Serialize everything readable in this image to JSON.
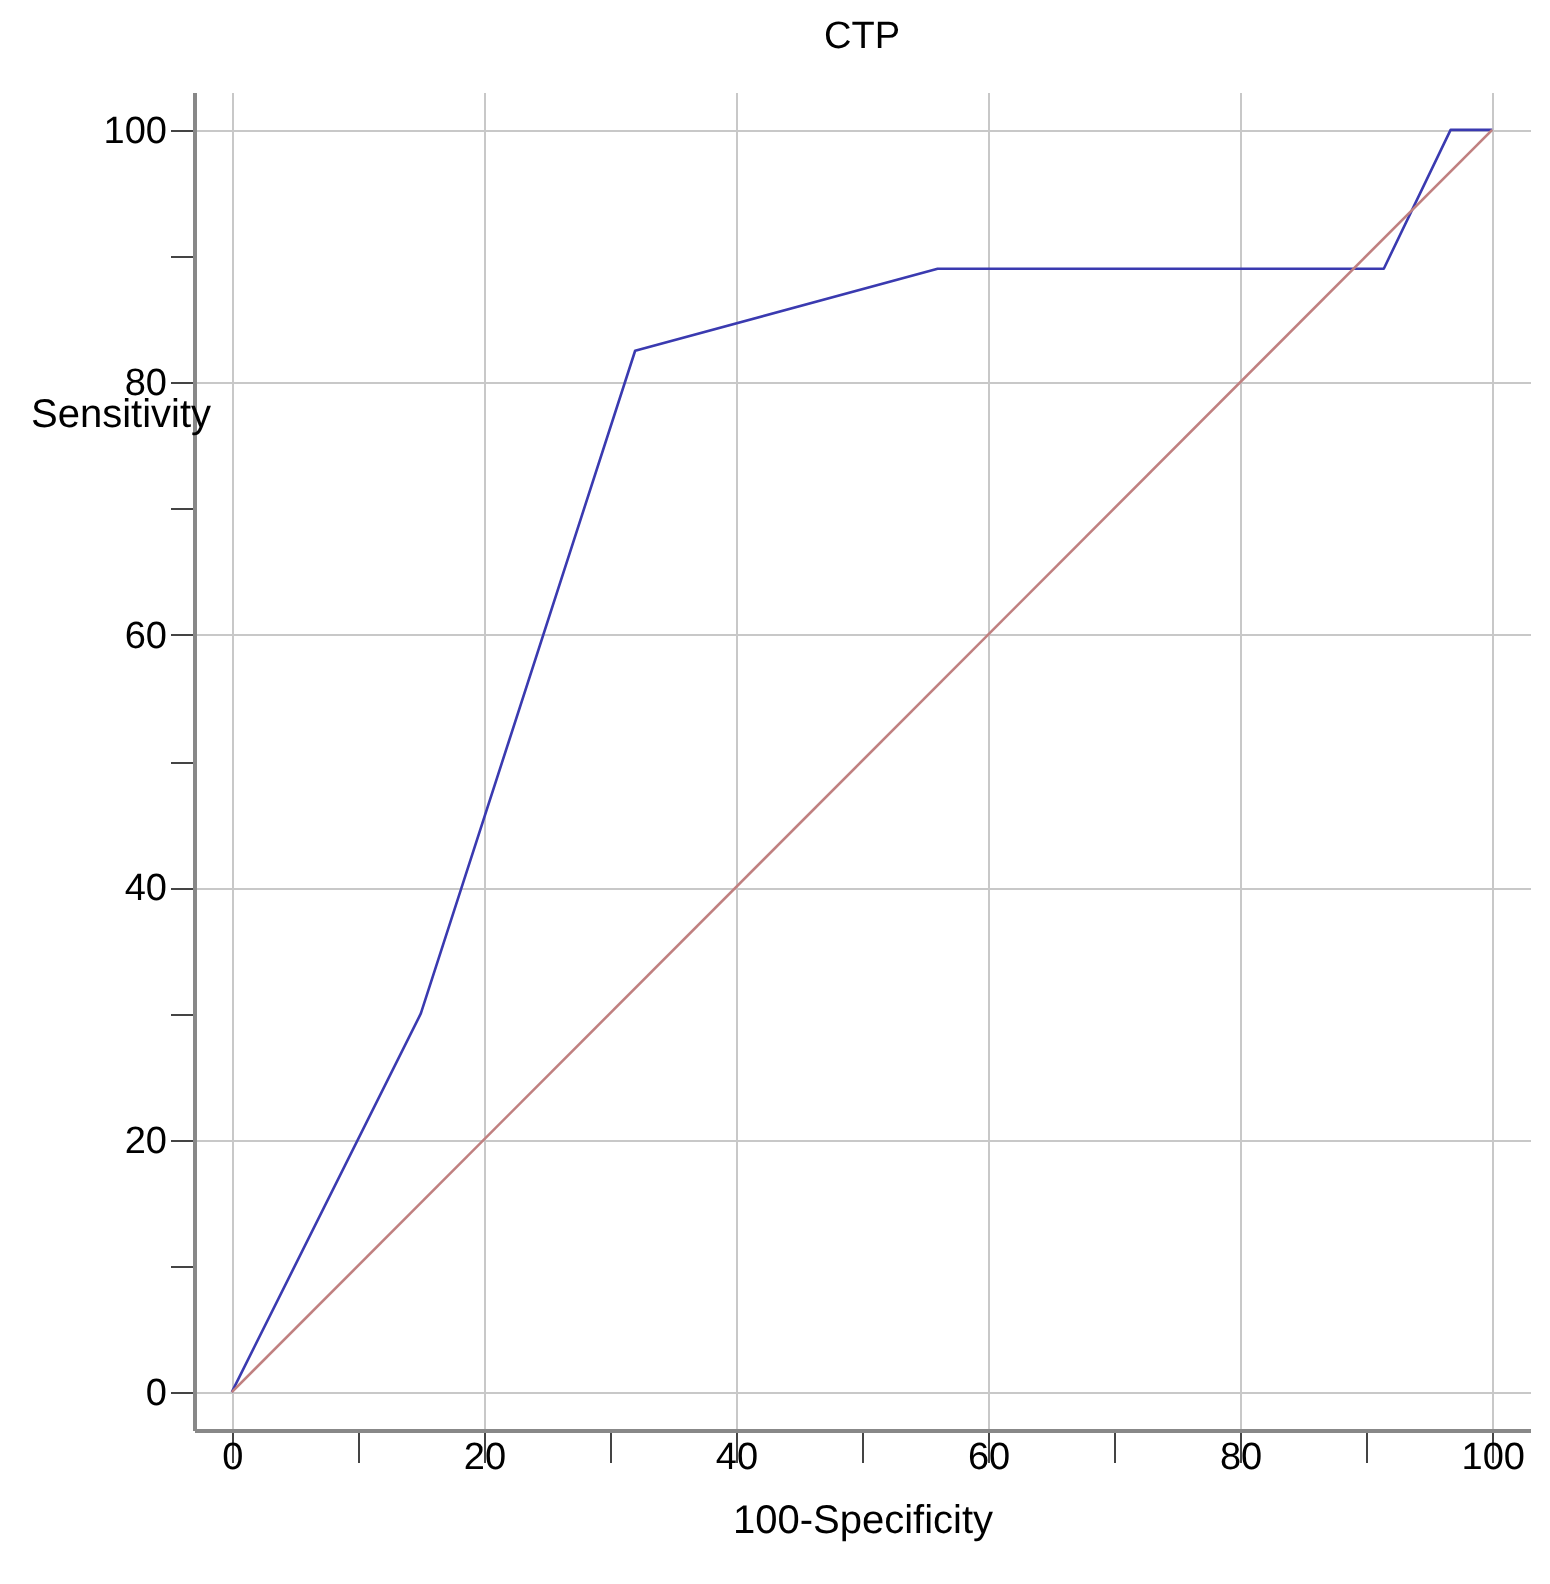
{
  "chart_data": {
    "type": "line",
    "title": "CTP",
    "xlabel": "100-Specificity",
    "ylabel": "Sensitivity",
    "xlim": [
      -3,
      103
    ],
    "ylim": [
      -3,
      103
    ],
    "xticks": [
      0,
      {
        "value": 10,
        "label": null
      },
      20,
      {
        "value": 30,
        "label": null
      },
      40,
      {
        "value": 50,
        "label": null
      },
      60,
      {
        "value": 70,
        "label": null
      },
      80,
      {
        "value": 90,
        "label": null
      },
      100
    ],
    "yticks": [
      0,
      {
        "value": 10,
        "label": null
      },
      20,
      {
        "value": 30,
        "label": null
      },
      40,
      {
        "value": 50,
        "label": null
      },
      60,
      {
        "value": 70,
        "label": null
      },
      80,
      {
        "value": 90,
        "label": null
      },
      100
    ],
    "grid": true,
    "line_style": "solid",
    "series": [
      {
        "color": "#3a3ab0",
        "x": [
          0,
          15,
          32,
          56,
          91.4,
          96.7,
          100
        ],
        "values": [
          0,
          30,
          82.5,
          89,
          89,
          100,
          100
        ]
      },
      {
        "color": "#c08080",
        "x": [
          0,
          100
        ],
        "values": [
          0,
          100
        ]
      }
    ]
  }
}
